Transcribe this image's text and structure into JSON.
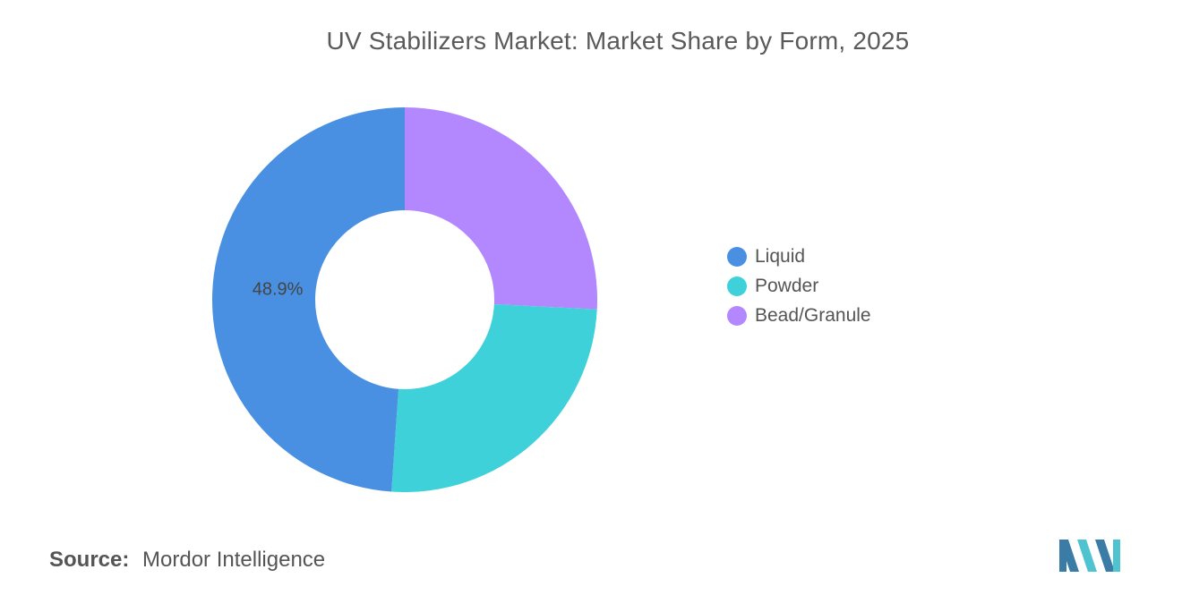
{
  "chart_data": {
    "type": "pie",
    "title": "UV Stabilizers Market: Market Share by Form, 2025",
    "categories": [
      "Liquid",
      "Powder",
      "Bead/Granule"
    ],
    "values": [
      48.9,
      25.3,
      25.8
    ],
    "data_labels": [
      "48.9%",
      "",
      ""
    ],
    "colors": [
      "#4A90E2",
      "#3FD1DA",
      "#B388FF"
    ],
    "legend_position": "right",
    "donut": true
  },
  "source": {
    "label": "Source:",
    "text": "Mordor Intelligence"
  },
  "logo": {
    "name": "mordor-intelligence-logo",
    "colors": [
      "#3A7CA5",
      "#4FC3D0"
    ]
  }
}
